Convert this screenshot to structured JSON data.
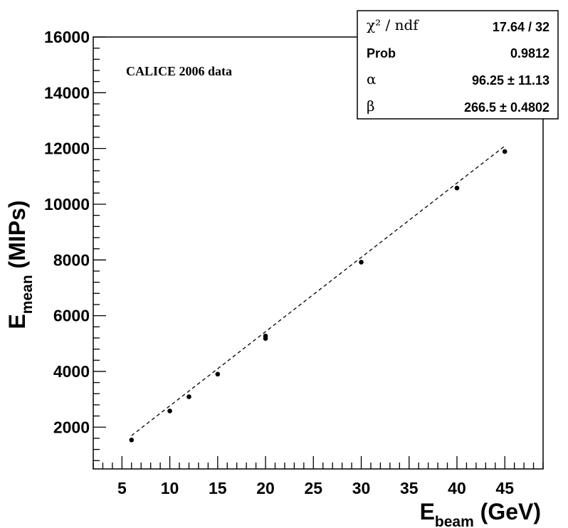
{
  "chart_data": {
    "type": "scatter",
    "annotation": "CALICE 2006 data",
    "xlabel": {
      "main": "E",
      "sub": "beam",
      "unit": "(GeV)"
    },
    "ylabel": {
      "main": "E",
      "sub": "mean",
      "unit": "(MIPs)"
    },
    "xlim": [
      2,
      49
    ],
    "ylim": [
      500,
      16000
    ],
    "xticks": [
      "5",
      "10",
      "15",
      "20",
      "25",
      "30",
      "35",
      "40",
      "45"
    ],
    "yticks": [
      "2000",
      "4000",
      "6000",
      "8000",
      "10000",
      "12000",
      "14000",
      "16000"
    ],
    "grid": false,
    "series": [
      {
        "x": [
          6,
          10,
          12,
          15,
          20,
          20,
          30,
          40,
          45
        ],
        "y": [
          1540,
          2580,
          3090,
          3900,
          5180,
          5270,
          7920,
          10580,
          11890
        ]
      }
    ],
    "fit_line": {
      "style": "dashed",
      "x": [
        6,
        45
      ],
      "y": [
        1696,
        12089
      ]
    },
    "stats_box": {
      "rows": [
        {
          "label": "χ² / ndf",
          "value": "17.64 / 32"
        },
        {
          "label": "Prob",
          "value": "0.9812"
        },
        {
          "label": "α",
          "value": "96.25 ± 11.13"
        },
        {
          "label": "β",
          "value": "266.5 ± 0.4802"
        }
      ]
    }
  }
}
